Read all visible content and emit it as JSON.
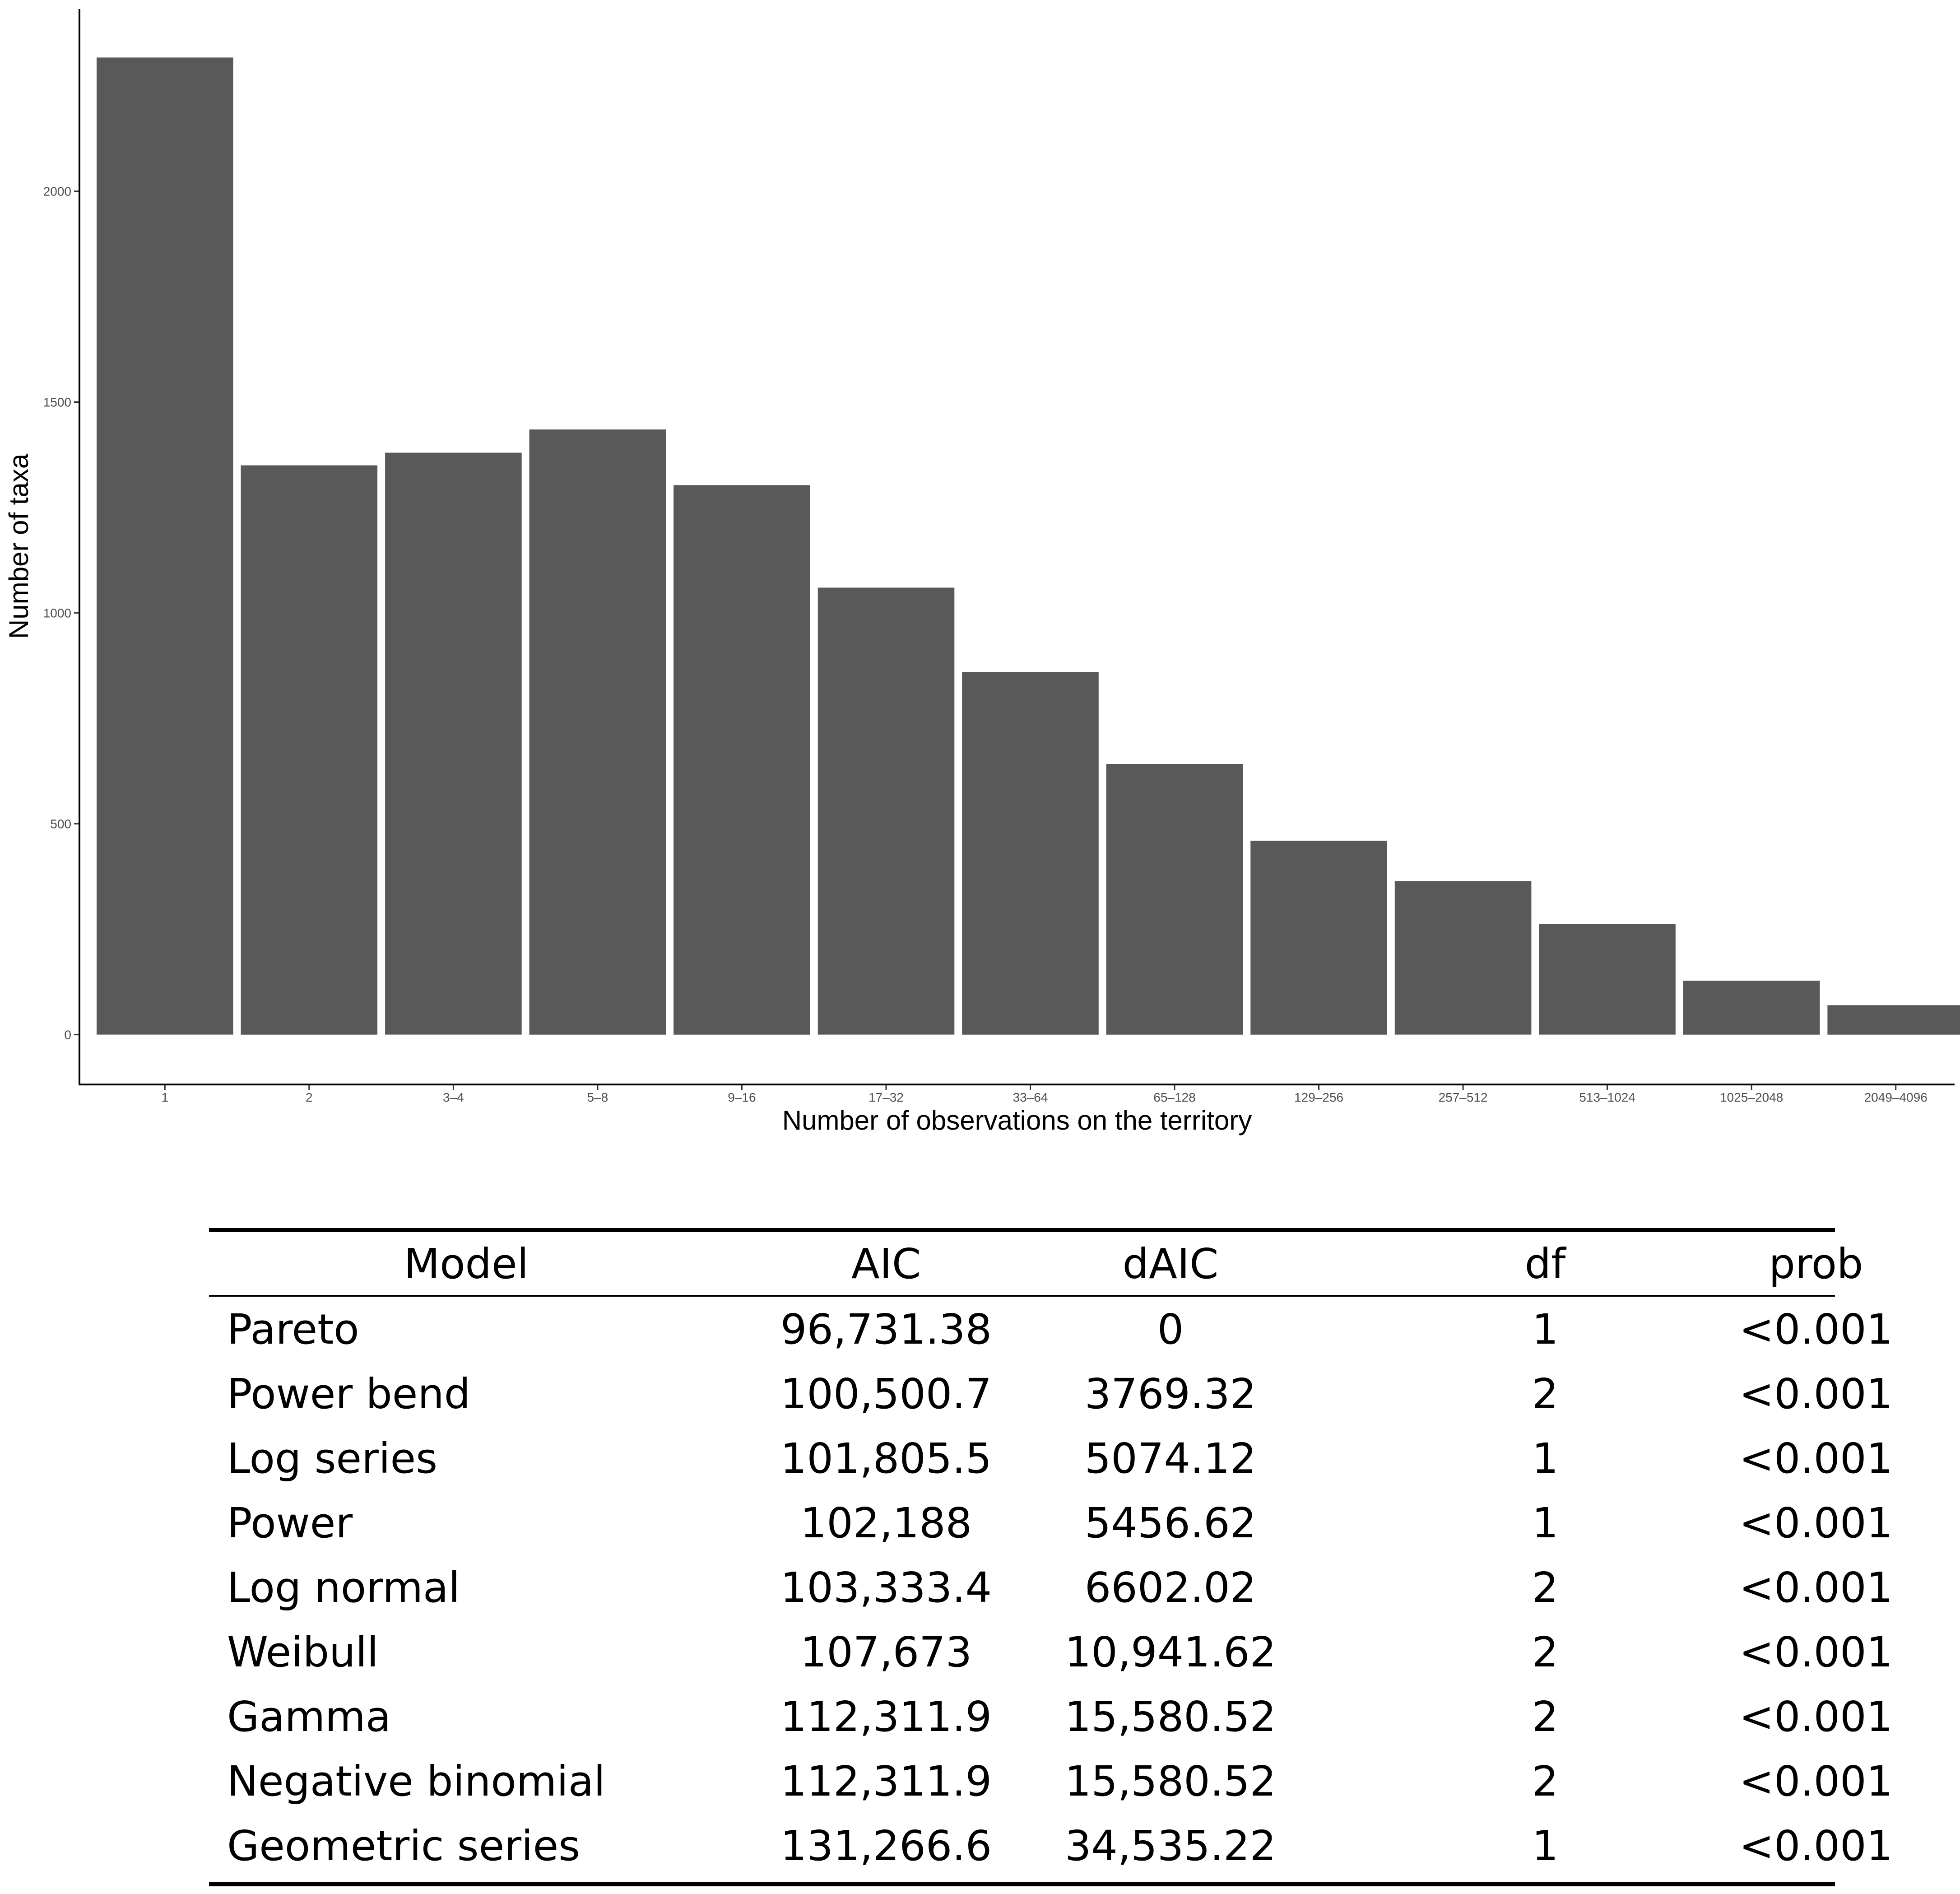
{
  "chart_data": {
    "type": "bar",
    "categories": [
      "1",
      "2",
      "3–4",
      "5–8",
      "9–16",
      "17–32",
      "33–64",
      "65–128",
      "129–256",
      "257–512",
      "513–1024",
      "1025–2048",
      "2049–4096"
    ],
    "values": [
      2317,
      1350,
      1380,
      1435,
      1303,
      1060,
      860,
      642,
      460,
      364,
      262,
      128,
      70
    ],
    "xlabel": "Number of observations on the territory",
    "ylabel": "Number of taxa",
    "y_ticks": [
      0,
      500,
      1000,
      1500,
      2000
    ],
    "ylim": [
      -116,
      2432
    ],
    "grid": false,
    "bar_color": "#595959"
  },
  "table": {
    "headers": {
      "model": "Model",
      "aic": "AIC",
      "daic": "dAIC",
      "df": "df",
      "prob": "prob"
    },
    "rows": [
      {
        "model": "Pareto",
        "aic": "96,731.38",
        "daic": "0",
        "df": "1",
        "prob": "<0.001"
      },
      {
        "model": "Power bend",
        "aic": "100,500.7",
        "daic": "3769.32",
        "df": "2",
        "prob": "<0.001"
      },
      {
        "model": "Log series",
        "aic": "101,805.5",
        "daic": "5074.12",
        "df": "1",
        "prob": "<0.001"
      },
      {
        "model": "Power",
        "aic": "102,188",
        "daic": "5456.62",
        "df": "1",
        "prob": "<0.001"
      },
      {
        "model": "Log normal",
        "aic": "103,333.4",
        "daic": "6602.02",
        "df": "2",
        "prob": "<0.001"
      },
      {
        "model": "Weibull",
        "aic": "107,673",
        "daic": "10,941.62",
        "df": "2",
        "prob": "<0.001"
      },
      {
        "model": "Gamma",
        "aic": "112,311.9",
        "daic": "15,580.52",
        "df": "2",
        "prob": "<0.001"
      },
      {
        "model": "Negative binomial",
        "aic": "112,311.9",
        "daic": "15,580.52",
        "df": "2",
        "prob": "<0.001"
      },
      {
        "model": "Geometric series",
        "aic": "131,266.6",
        "daic": "34,535.22",
        "df": "1",
        "prob": "<0.001"
      }
    ]
  }
}
